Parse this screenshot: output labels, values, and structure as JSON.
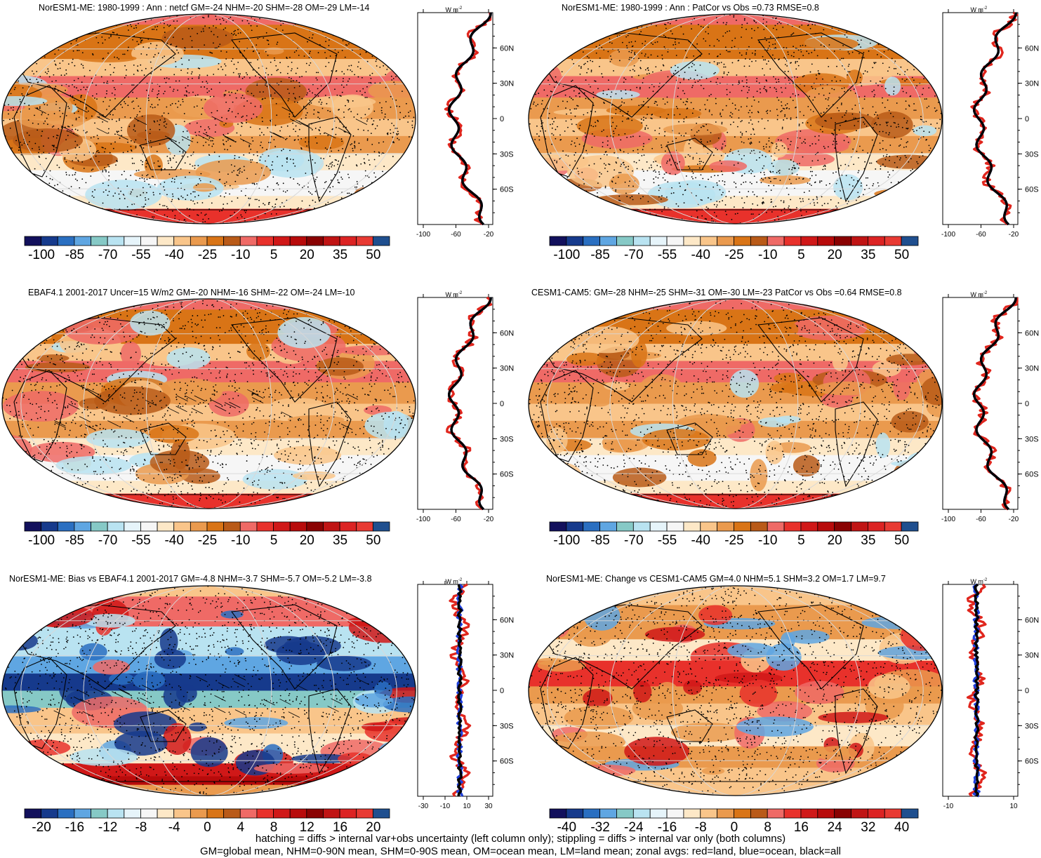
{
  "colors": {
    "land_line": "#e0261d",
    "ocean_line": "#1f3fdb",
    "all_line": "#000000",
    "palette": [
      "#12105c",
      "#163a8c",
      "#2a6fc1",
      "#5fa6e2",
      "#86c9c6",
      "#b9e3f1",
      "#e6f4fa",
      "#f6f6f6",
      "#fde8c7",
      "#f9c58a",
      "#ea9a4e",
      "#d97416",
      "#b95a18",
      "#ef6a66",
      "#e8312b",
      "#d01818",
      "#b80b0b",
      "#8a0202",
      "#c01414",
      "#dc2323",
      "#e83a33",
      "#1f4f8f"
    ]
  },
  "panels": [
    {
      "id": "p1",
      "title": "NorESM1-ME: 1980-1999 : Ann : netcf GM=-24 NHM=-20 SHM=-28 OM=-29 LM=-14",
      "colorbar_labels": [
        "-100",
        "-85",
        "-70",
        "-55",
        "-40",
        "-25",
        "-10",
        "5",
        "20",
        "35",
        "50"
      ],
      "zonal_x_labels": [
        "-100",
        "-60",
        "-20"
      ],
      "zonal_unit": "W m-2",
      "lat_labels": [
        "60N",
        "30N",
        "0",
        "30S",
        "60S"
      ],
      "hatching": true
    },
    {
      "id": "p2",
      "title": "NorESM1-ME: 1980-1999 : Ann : PatCor vs Obs =0.73 RMSE=0.8",
      "colorbar_labels": [
        "-100",
        "-85",
        "-70",
        "-55",
        "-40",
        "-25",
        "-10",
        "5",
        "20",
        "35",
        "50"
      ],
      "zonal_x_labels": [
        "-100",
        "-60",
        "-20"
      ],
      "zonal_unit": "W m-2",
      "lat_labels": [
        "60N",
        "30N",
        "0",
        "30S",
        "60S"
      ],
      "hatching": false
    },
    {
      "id": "p3",
      "title": "EBAF4.1 2001-2017 Uncer=15 W/m2 GM=-20 NHM=-16 SHM=-22 OM=-24 LM=-10",
      "colorbar_labels": [
        "-100",
        "-85",
        "-70",
        "-55",
        "-40",
        "-25",
        "-10",
        "5",
        "20",
        "35",
        "50"
      ],
      "zonal_x_labels": [
        "-100",
        "-60",
        "-20"
      ],
      "zonal_unit": "W m-2",
      "lat_labels": [
        "60N",
        "30N",
        "0",
        "30S",
        "60S"
      ],
      "hatching": true
    },
    {
      "id": "p4",
      "title": "CESM1-CAM5: GM=-28 NHM=-25 SHM=-31 OM=-30 LM=-23 PatCor vs Obs =0.64 RMSE=0.8",
      "colorbar_labels": [
        "-100",
        "-85",
        "-70",
        "-55",
        "-40",
        "-25",
        "-10",
        "5",
        "20",
        "35",
        "50"
      ],
      "zonal_x_labels": [
        "-100",
        "-60",
        "-20"
      ],
      "zonal_unit": "W m-2",
      "lat_labels": [
        "60N",
        "30N",
        "0",
        "30S",
        "60S"
      ],
      "hatching": false
    },
    {
      "id": "p5",
      "title": "NorESM1-ME: Bias vs EBAF4.1 2001-2017 GM=-4.8 NHM=-3.7 SHM=-5.7 OM=-5.2 LM=-3.8",
      "colorbar_labels": [
        "-20",
        "-16",
        "-12",
        "-8",
        "-4",
        "0",
        "4",
        "8",
        "12",
        "16",
        "20"
      ],
      "zonal_x_labels": [
        "-30",
        "-10",
        "10",
        "30"
      ],
      "zonal_unit": "W m-2",
      "lat_labels": [
        "60N",
        "30N",
        "0",
        "30S",
        "60S"
      ],
      "hatching": true
    },
    {
      "id": "p6",
      "title": "NorESM1-ME: Change vs CESM1-CAM5 GM=4.0 NHM=5.1 SHM=3.2 OM=1.7 LM=9.7",
      "colorbar_labels": [
        "-40",
        "-32",
        "-24",
        "-16",
        "-8",
        "0",
        "8",
        "16",
        "24",
        "32",
        "40"
      ],
      "zonal_x_labels": [
        "-10",
        "10"
      ],
      "zonal_unit": "W m-2",
      "lat_labels": [
        "60N",
        "30N",
        "0",
        "30S",
        "60S"
      ],
      "hatching": false
    }
  ],
  "footer": {
    "line1": "hatching = diffs > internal var+obs uncertainty (left column only); stippling = diffs > internal var only (both columns)",
    "line2": "GM=global mean, NHM=0-90N mean, SHM=0-90S mean, OM=ocean mean, LM=land mean; zonal avgs: red=land, blue=ocean, black=all"
  }
}
